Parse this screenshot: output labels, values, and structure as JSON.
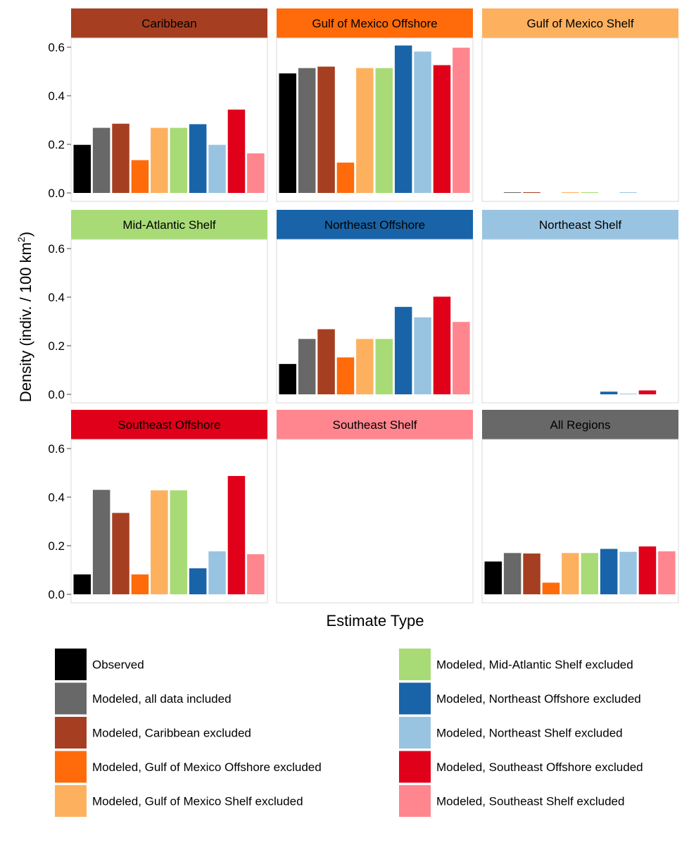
{
  "chart_data": {
    "type": "bar",
    "ylabel_main": "Density (indiv. / 100 km",
    "ylabel_sup": "2",
    "ylabel_end": ")",
    "xlabel": "Estimate Type",
    "ylim": [
      0,
      0.65
    ],
    "yticks": [
      0.0,
      0.2,
      0.4,
      0.6
    ],
    "ytick_labels": [
      "0.0",
      "0.2",
      "0.4",
      "0.6"
    ],
    "grid": false,
    "legend_position": "bottom",
    "series": [
      {
        "name": "Observed",
        "color": "#000000"
      },
      {
        "name": "Modeled, all data included",
        "color": "#686868"
      },
      {
        "name": "Modeled, Caribbean excluded",
        "color": "#A63F21"
      },
      {
        "name": "Modeled, Gulf of Mexico Offshore excluded",
        "color": "#FF6B0B"
      },
      {
        "name": "Modeled, Gulf of Mexico Shelf excluded",
        "color": "#FDB15F"
      },
      {
        "name": "Modeled, Mid-Atlantic Shelf excluded",
        "color": "#A8DB76"
      },
      {
        "name": "Modeled, Northeast Offshore excluded",
        "color": "#1964A8"
      },
      {
        "name": "Modeled, Northeast Shelf excluded",
        "color": "#99C4E1"
      },
      {
        "name": "Modeled, Southeast Offshore excluded",
        "color": "#E0001A"
      },
      {
        "name": "Modeled, Southeast Shelf excluded",
        "color": "#FF868E"
      }
    ],
    "panels": [
      {
        "title": "Caribbean",
        "strip_color": "#A63F21",
        "strip_text_color": "#000000",
        "values": [
          0.198,
          0.268,
          0.285,
          0.135,
          0.268,
          0.268,
          0.283,
          0.198,
          0.343,
          0.163
        ]
      },
      {
        "title": "Gulf of Mexico Offshore",
        "strip_color": "#FF6B0B",
        "strip_text_color": "#000000",
        "values": [
          0.492,
          0.514,
          0.52,
          0.125,
          0.514,
          0.514,
          0.607,
          0.582,
          0.526,
          0.598
        ]
      },
      {
        "title": "Gulf of Mexico Shelf",
        "strip_color": "#FDB15F",
        "strip_text_color": "#000000",
        "values": [
          0.0,
          0.002,
          0.002,
          0.0,
          0.002,
          0.002,
          0.0,
          0.001,
          0.0,
          0.0
        ]
      },
      {
        "title": "Mid-Atlantic Shelf",
        "strip_color": "#A8DB76",
        "strip_text_color": "#000000",
        "values": [
          0,
          0,
          0,
          0,
          0,
          0,
          0,
          0,
          0,
          0
        ]
      },
      {
        "title": "Northeast Offshore",
        "strip_color": "#1964A8",
        "strip_text_color": "#000000",
        "values": [
          0.125,
          0.228,
          0.268,
          0.152,
          0.228,
          0.228,
          0.36,
          0.317,
          0.402,
          0.298
        ]
      },
      {
        "title": "Northeast Shelf",
        "strip_color": "#99C4E1",
        "strip_text_color": "#000000",
        "values": [
          0.0,
          0.0,
          0.0,
          0.0,
          0.0,
          0.0,
          0.011,
          0.002,
          0.016,
          0.0
        ]
      },
      {
        "title": "Southeast Offshore",
        "strip_color": "#E0001A",
        "strip_text_color": "#000000",
        "values": [
          0.082,
          0.43,
          0.335,
          0.082,
          0.428,
          0.428,
          0.107,
          0.177,
          0.487,
          0.165
        ]
      },
      {
        "title": "Southeast Shelf",
        "strip_color": "#FF868E",
        "strip_text_color": "#000000",
        "values": [
          0,
          0,
          0,
          0,
          0,
          0,
          0,
          0,
          0,
          0
        ]
      },
      {
        "title": "All Regions",
        "strip_color": "#686868",
        "strip_text_color": "#000000",
        "values": [
          0.135,
          0.17,
          0.168,
          0.048,
          0.17,
          0.17,
          0.187,
          0.175,
          0.197,
          0.177
        ]
      }
    ]
  }
}
